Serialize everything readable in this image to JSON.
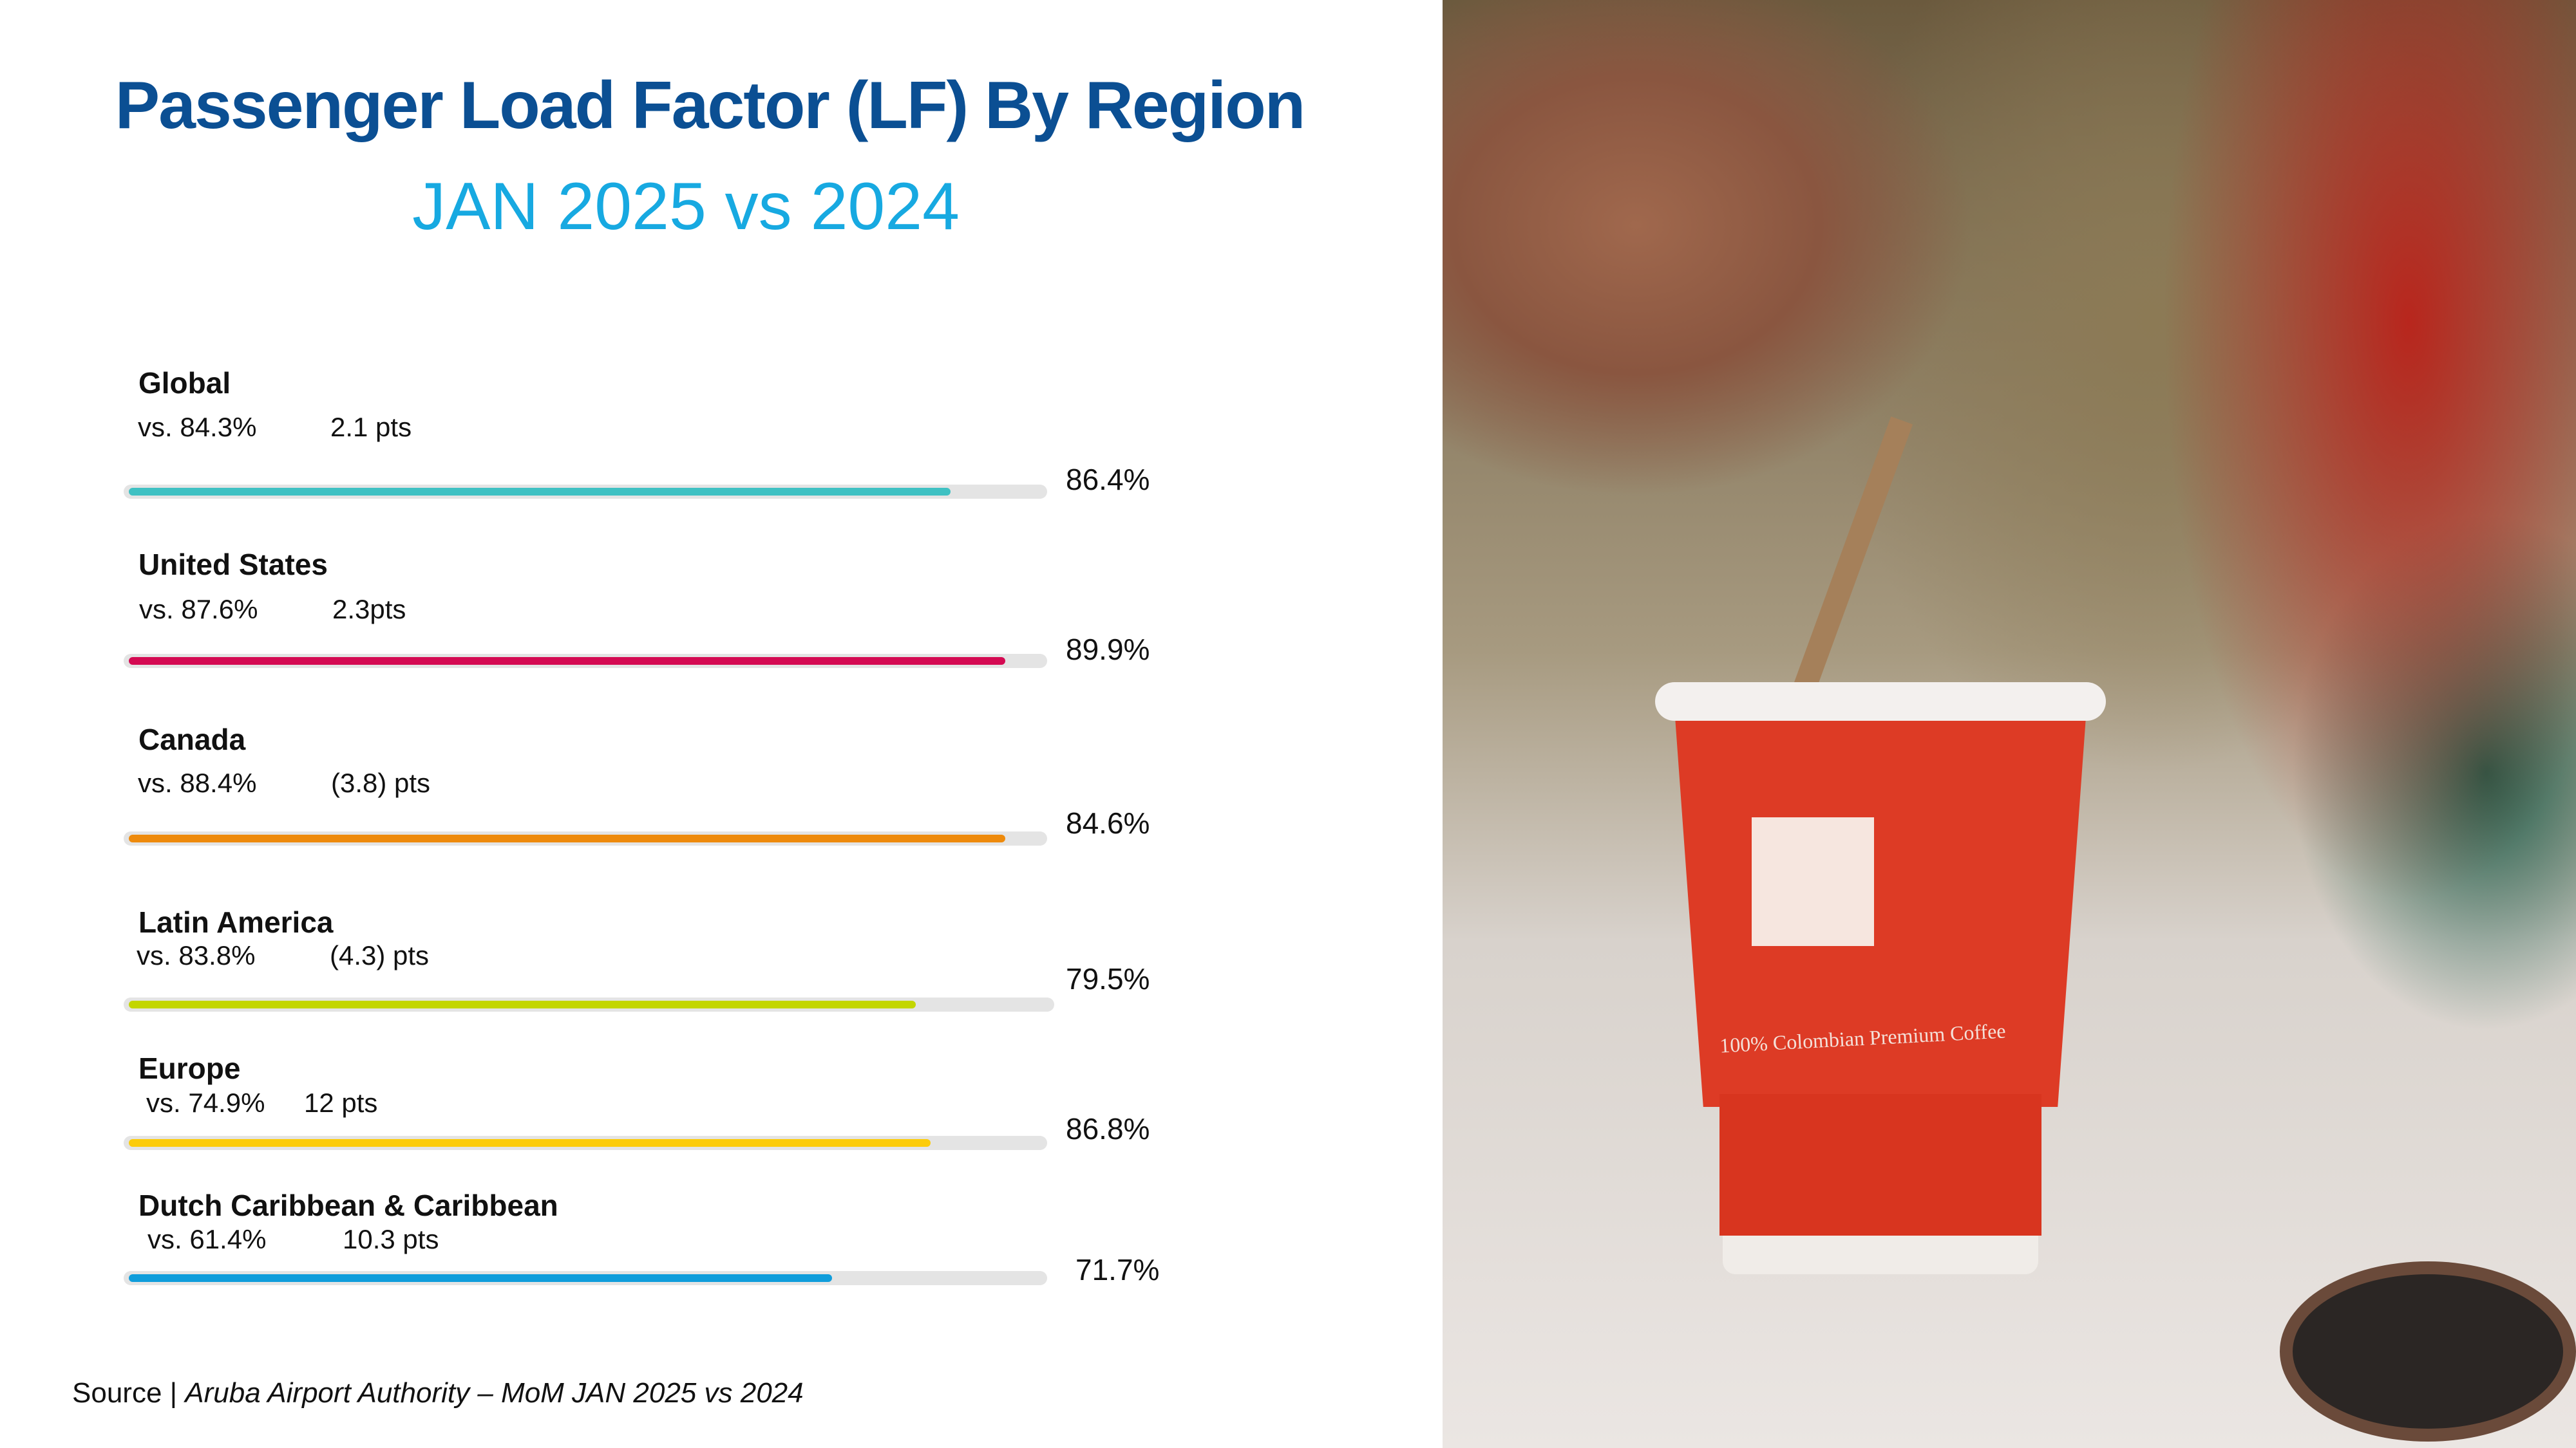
{
  "title": "Passenger Load Factor (LF) By Region",
  "subtitle": "JAN 2025 vs 2024",
  "source": {
    "prefix": "Source | ",
    "text": "Aruba Airport Authority – MoM JAN 2025 vs 2024"
  },
  "photo": {
    "cup_text": "100% Colombian Premium Coffee"
  },
  "chart_data": {
    "type": "bar",
    "orientation": "horizontal",
    "title": "Passenger Load Factor (LF) By Region",
    "subtitle": "JAN 2025 vs 2024",
    "categories": [
      "Global",
      "United States",
      "Canada",
      "Latin America",
      "Europe",
      "Dutch Caribbean & Caribbean"
    ],
    "series": [
      {
        "name": "JAN 2025 LF",
        "values": [
          86.4,
          89.9,
          84.6,
          79.5,
          86.8,
          71.7
        ]
      },
      {
        "name": "JAN 2024 LF",
        "values": [
          84.3,
          87.6,
          88.4,
          83.8,
          74.9,
          61.4
        ]
      }
    ],
    "rows": [
      {
        "label": "Global",
        "vs": "vs. 84.3%",
        "delta": "2.1 pts",
        "value": "86.4%",
        "color": "#3fc1c3",
        "fill": 0.9
      },
      {
        "label": "United States",
        "vs": "vs. 87.6%",
        "delta": "2.3pts",
        "value": "89.9%",
        "color": "#d40a52",
        "fill": 0.96
      },
      {
        "label": "Canada",
        "vs": "vs. 88.4%",
        "delta": "(3.8) pts",
        "value": "84.6%",
        "color": "#ee8a0c",
        "fill": 0.96
      },
      {
        "label": "Latin America",
        "vs": "vs. 83.8%",
        "delta": "(4.3) pts",
        "value": "79.5%",
        "color": "#c3d600",
        "fill": 0.855
      },
      {
        "label": "Europe",
        "vs": "vs. 74.9%",
        "delta": "12 pts",
        "value": "86.8%",
        "color": "#fccc0a",
        "fill": 0.878
      },
      {
        "label": "Dutch Caribbean & Caribbean",
        "vs": "vs. 61.4%",
        "delta": "10.3 pts",
        "value": "71.7%",
        "color": "#0f9ddb",
        "fill": 0.77
      }
    ],
    "unit": "%"
  }
}
